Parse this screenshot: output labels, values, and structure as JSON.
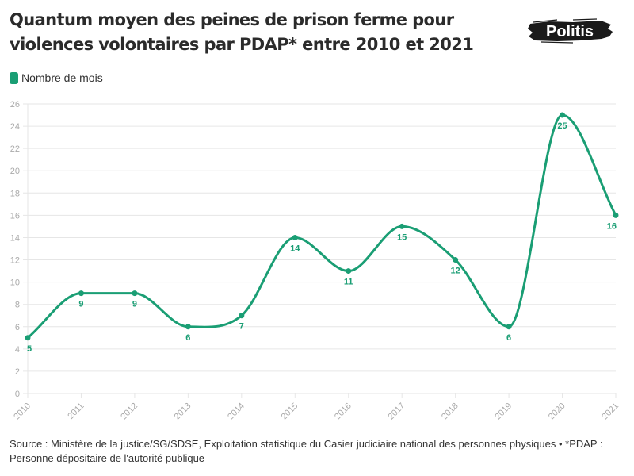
{
  "header": {
    "title": "Quantum moyen des peines de prison ferme pour violences volontaires par PDAP* entre 2010 et 2021",
    "logo_text": "Politis"
  },
  "legend": {
    "label": "Nombre de mois",
    "color": "#1a9e74"
  },
  "footer": {
    "source": "Source : Ministère de la justice/SG/SDSE, Exploitation statistique du Casier judiciaire national des personnes physiques • *PDAP : Personne dépositaire de l'autorité publique"
  },
  "colors": {
    "series": "#1a9e74",
    "grid": "#e6e6e6",
    "tick_text": "#aaaaaa"
  },
  "chart_data": {
    "type": "line",
    "title": "Quantum moyen des peines de prison ferme pour violences volontaires par PDAP* entre 2010 et 2021",
    "xlabel": "",
    "ylabel": "",
    "categories": [
      "2010",
      "2011",
      "2012",
      "2013",
      "2014",
      "2015",
      "2016",
      "2017",
      "2018",
      "2019",
      "2020",
      "2021"
    ],
    "series": [
      {
        "name": "Nombre de mois",
        "values": [
          5,
          9,
          9,
          6,
          7,
          14,
          11,
          15,
          12,
          6,
          25,
          16
        ]
      }
    ],
    "ylim": [
      0,
      26
    ],
    "yticks": [
      0,
      2,
      4,
      6,
      8,
      10,
      12,
      14,
      16,
      18,
      20,
      22,
      24,
      26
    ],
    "grid": true,
    "legend_position": "top-left",
    "curve": "smooth",
    "data_labels": true
  }
}
